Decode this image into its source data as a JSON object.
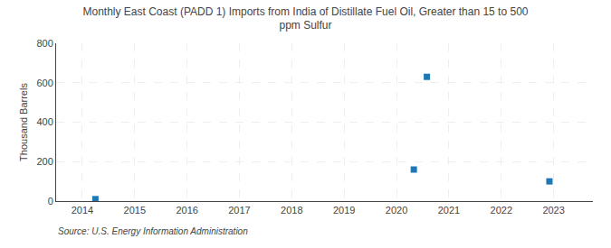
{
  "chart_data": {
    "type": "scatter",
    "title": "Monthly East Coast (PADD 1) Imports from India of Distillate Fuel Oil, Greater than 15 to 500\nppm Sulfur",
    "ylabel": "Thousand Barrels",
    "source": "Source: U.S. Energy Information Administration",
    "x": [
      2014.25,
      2020.33,
      2020.58,
      2022.92
    ],
    "values": [
      10,
      160,
      630,
      100
    ],
    "marker": "square",
    "xlim": [
      2013.5,
      2023.75
    ],
    "xticks": [
      2014,
      2015,
      2016,
      2017,
      2018,
      2019,
      2020,
      2021,
      2022,
      2023
    ],
    "ylim": [
      0,
      800
    ],
    "yticks": [
      0,
      200,
      400,
      600,
      800
    ],
    "grid": true
  }
}
